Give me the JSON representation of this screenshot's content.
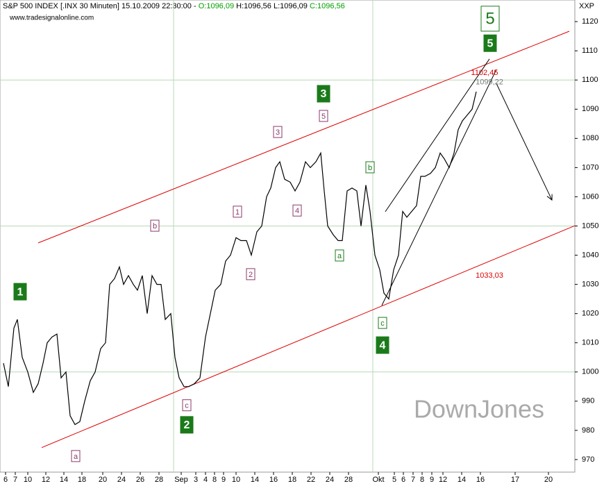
{
  "header": {
    "instrument": "S&P 500 INDEX [.INX  30 Minuten] 15.10.2009 22:30:00 -",
    "open": "O:1096,09",
    "high": "H:1096,56",
    "low": "L:1096,09",
    "close": "C:1096,56",
    "source": "www.tradesignalonline.com",
    "axis_code": "XXP"
  },
  "watermark": "DownJones",
  "chart_data": {
    "type": "line",
    "color": "#000000",
    "x": [
      0.5,
      1.2,
      2.0,
      2.5,
      3.2,
      4.0,
      4.8,
      5.5,
      6.2,
      6.8,
      7.5,
      8.2,
      8.8,
      9.5,
      10.1,
      10.8,
      11.5,
      12.2,
      13.0,
      13.7,
      14.5,
      15.2,
      15.8,
      16.5,
      17.2,
      17.8,
      18.5,
      19.2,
      19.8,
      20.5,
      21.2,
      21.9,
      22.6,
      23.2,
      23.8,
      24.6,
      25.2,
      25.8,
      26.5,
      27.2,
      28.0,
      28.8,
      29.6,
      30.3,
      31.0,
      31.8,
      32.5,
      33.2,
      34.0,
      34.7,
      35.5,
      36.2,
      37.0,
      37.7,
      38.4,
      39.0,
      39.7,
      40.3,
      41.0,
      41.8,
      42.5,
      43.2,
      44.0,
      44.7,
      45.5,
      46.2,
      46.7,
      47.2,
      48.0,
      48.7,
      49.3,
      50.0,
      50.7,
      51.4,
      52.0,
      52.7,
      53.3,
      54.0,
      54.7,
      55.3,
      56.0,
      56.7,
      57.4,
      58.0,
      58.6,
      59.3,
      60.0,
      60.6,
      61.2,
      62.0,
      62.7,
      63.4,
      64.0,
      64.7,
      65.4,
      66.0,
      66.6,
      67.3,
      68.0,
      68.6
    ],
    "values": [
      1003,
      995,
      1015,
      1018,
      1005,
      1000,
      993,
      996,
      1003,
      1010,
      1012,
      1013,
      998,
      1000,
      985,
      982,
      983,
      990,
      997,
      1000,
      1008,
      1010,
      1030,
      1032,
      1036,
      1030,
      1033,
      1030,
      1028,
      1033,
      1020,
      1033,
      1030,
      1030,
      1018,
      1020,
      1005,
      998,
      995,
      995,
      996,
      998,
      1012,
      1020,
      1028,
      1030,
      1038,
      1040,
      1046,
      1045,
      1045,
      1040,
      1048,
      1050,
      1060,
      1063,
      1070,
      1072,
      1066,
      1065,
      1062,
      1065,
      1072,
      1070,
      1072,
      1075,
      1062,
      1050,
      1047,
      1045,
      1045,
      1062,
      1063,
      1062,
      1050,
      1064,
      1055,
      1040,
      1035,
      1027,
      1025,
      1035,
      1040,
      1055,
      1053,
      1055,
      1057,
      1067,
      1067,
      1068,
      1070,
      1075,
      1073,
      1070,
      1075,
      1083,
      1086,
      1088,
      1090,
      1096
    ],
    "xlim": [
      0,
      82.8
    ],
    "ylim": [
      965.7,
      1127.4
    ],
    "yticks": [
      970,
      980,
      990,
      1000,
      1010,
      1020,
      1030,
      1040,
      1050,
      1060,
      1070,
      1080,
      1090,
      1100,
      1110,
      1120
    ],
    "xticks": [
      {
        "value": 0.8,
        "label": "6"
      },
      {
        "value": 2.2,
        "label": "7"
      },
      {
        "value": 4.0,
        "label": "10"
      },
      {
        "value": 6.6,
        "label": "12"
      },
      {
        "value": 9.2,
        "label": "14"
      },
      {
        "value": 11.8,
        "label": "18"
      },
      {
        "value": 14.8,
        "label": "20"
      },
      {
        "value": 17.5,
        "label": "24"
      },
      {
        "value": 20.2,
        "label": "26"
      },
      {
        "value": 22.9,
        "label": "28"
      },
      {
        "value": 26.1,
        "label": "Sep"
      },
      {
        "value": 28.2,
        "label": "3"
      },
      {
        "value": 29.6,
        "label": "4"
      },
      {
        "value": 30.9,
        "label": "8"
      },
      {
        "value": 32.2,
        "label": "9"
      },
      {
        "value": 34.0,
        "label": "10"
      },
      {
        "value": 36.7,
        "label": "14"
      },
      {
        "value": 39.4,
        "label": "16"
      },
      {
        "value": 42.1,
        "label": "18"
      },
      {
        "value": 44.8,
        "label": "22"
      },
      {
        "value": 47.5,
        "label": "24"
      },
      {
        "value": 50.2,
        "label": "28"
      },
      {
        "value": 54.5,
        "label": "Okt"
      },
      {
        "value": 56.8,
        "label": "5"
      },
      {
        "value": 58.1,
        "label": "6"
      },
      {
        "value": 59.5,
        "label": "7"
      },
      {
        "value": 60.8,
        "label": "8"
      },
      {
        "value": 62.2,
        "label": "9"
      },
      {
        "value": 63.8,
        "label": "12"
      },
      {
        "value": 66.5,
        "label": "14"
      },
      {
        "value": 69.2,
        "label": "16"
      },
      {
        "value": 74.2,
        "label": "17"
      },
      {
        "value": 79.0,
        "label": "20"
      }
    ],
    "grid_y": [
      1000,
      1050,
      1100
    ],
    "grid_x": [
      25.0,
      53.7
    ],
    "trendlines": [
      {
        "color": "#dd0000",
        "points": [
          [
            5.5,
            1044.2
          ],
          [
            82,
            1116.7
          ]
        ]
      },
      {
        "color": "#dd0000",
        "points": [
          [
            6,
            974.1
          ],
          [
            82.8,
            1050.1
          ]
        ]
      },
      {
        "color": "#000000",
        "points": [
          [
            55.5,
            1054.9
          ],
          [
            70.5,
            1107.2
          ]
        ]
      },
      {
        "color": "#000000",
        "points": [
          [
            55,
            1022.8
          ],
          [
            71.5,
            1103.6
          ]
        ]
      },
      {
        "color": "#000000",
        "arrow": true,
        "points": [
          [
            71.5,
            1098.8
          ],
          [
            79.5,
            1058.9
          ]
        ]
      }
    ],
    "annotations": [
      {
        "text": "1",
        "x": 2.9,
        "y": 1027.5,
        "kind": "major"
      },
      {
        "text": "2",
        "x": 26.9,
        "y": 981.9,
        "kind": "major"
      },
      {
        "text": "3",
        "x": 46.6,
        "y": 1095.3,
        "kind": "major"
      },
      {
        "text": "4",
        "x": 55.1,
        "y": 1009.2,
        "kind": "major"
      },
      {
        "text": "5",
        "x": 70.6,
        "y": 1112.6,
        "kind": "major"
      },
      {
        "text": "5",
        "x": 70.6,
        "y": 1121.0,
        "kind": "big"
      },
      {
        "text": "a",
        "x": 10.9,
        "y": 971.2,
        "kind": "minor"
      },
      {
        "text": "b",
        "x": 22.3,
        "y": 1050.1,
        "kind": "minor"
      },
      {
        "text": "c",
        "x": 26.9,
        "y": 988.6,
        "kind": "minor"
      },
      {
        "text": "1",
        "x": 34.2,
        "y": 1054.9,
        "kind": "minor"
      },
      {
        "text": "2",
        "x": 36.1,
        "y": 1033.5,
        "kind": "minor"
      },
      {
        "text": "3",
        "x": 40.0,
        "y": 1082.2,
        "kind": "minor"
      },
      {
        "text": "4",
        "x": 42.8,
        "y": 1055.3,
        "kind": "minor"
      },
      {
        "text": "5",
        "x": 46.6,
        "y": 1087.7,
        "kind": "minor"
      },
      {
        "text": "a",
        "x": 48.9,
        "y": 1039.9,
        "kind": "corr"
      },
      {
        "text": "b",
        "x": 53.3,
        "y": 1070.1,
        "kind": "corr"
      },
      {
        "text": "c",
        "x": 55.1,
        "y": 1016.8,
        "kind": "corr"
      }
    ],
    "price_labels": [
      {
        "value": 1102.45,
        "label": "1102,45",
        "x": 69.8,
        "color": "#dd0000"
      },
      {
        "value": 1099.22,
        "label": "1099,22",
        "x": 70.5,
        "color": "#777777"
      },
      {
        "value": 1033.03,
        "label": "1033,03",
        "x": 70.5,
        "color": "#dd0000"
      }
    ]
  }
}
